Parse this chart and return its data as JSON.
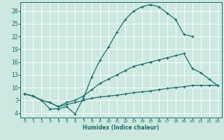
{
  "xlabel": "Humidex (Indice chaleur)",
  "bg_color": "#cce8e0",
  "grid_color": "#ffffff",
  "line_color": "#1a6e6a",
  "xlim": [
    -0.5,
    23.5
  ],
  "ylim": [
    3.0,
    30.0
  ],
  "xticks": [
    0,
    1,
    2,
    3,
    4,
    5,
    6,
    7,
    8,
    9,
    10,
    11,
    12,
    13,
    14,
    15,
    16,
    17,
    18,
    19,
    20,
    21,
    22,
    23
  ],
  "yticks": [
    4,
    7,
    10,
    13,
    16,
    19,
    22,
    25,
    28
  ],
  "top_x": [
    0,
    1,
    2,
    3,
    4,
    5,
    6,
    7,
    8,
    9,
    10,
    11,
    12,
    13,
    14,
    15,
    16,
    17,
    18,
    19,
    20
  ],
  "top_y": [
    8.5,
    8.0,
    7.0,
    5.0,
    5.0,
    5.5,
    3.8,
    7.5,
    12.5,
    16.5,
    19.5,
    23.0,
    26.0,
    28.0,
    29.0,
    29.5,
    29.0,
    27.5,
    26.0,
    22.5,
    22.0
  ],
  "mid_x": [
    0,
    1,
    2,
    3,
    4,
    5,
    6,
    7,
    8,
    9,
    10,
    11,
    12,
    13,
    14,
    15,
    16,
    17,
    18,
    19,
    20,
    21,
    22,
    23
  ],
  "mid_y": [
    8.5,
    8.0,
    7.0,
    6.5,
    5.5,
    6.5,
    7.0,
    8.0,
    9.5,
    11.0,
    12.0,
    13.0,
    14.0,
    15.0,
    15.5,
    16.0,
    16.5,
    17.0,
    17.5,
    18.0,
    14.5,
    13.5,
    12.0,
    10.5
  ],
  "bot_x": [
    0,
    1,
    2,
    3,
    4,
    5,
    6,
    7,
    8,
    9,
    10,
    11,
    12,
    13,
    14,
    15,
    16,
    17,
    18,
    19,
    20,
    21,
    22,
    23
  ],
  "bot_y": [
    8.5,
    8.0,
    7.0,
    6.5,
    5.5,
    6.0,
    6.5,
    7.0,
    7.5,
    7.8,
    8.0,
    8.2,
    8.5,
    8.8,
    9.0,
    9.2,
    9.5,
    9.8,
    10.0,
    10.2,
    10.5,
    10.5,
    10.5,
    10.5
  ]
}
